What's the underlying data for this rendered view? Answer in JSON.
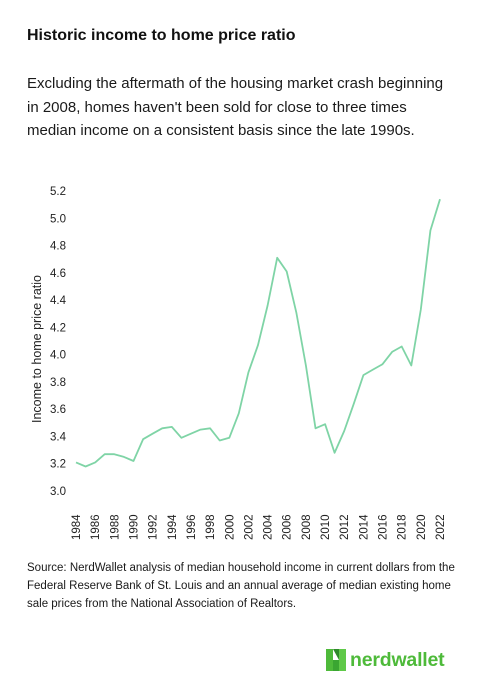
{
  "title": "Historic income to home price ratio",
  "subtitle": "Excluding the aftermath of the housing market crash beginning in 2008, homes haven't been sold for close to three times median income on a consistent basis since the late 1990s.",
  "source": "Source: NerdWallet analysis of median household income in current dollars from the Federal Reserve Bank of St. Louis and an annual average of median existing home sale prices from the National Association of Realtors.",
  "logo": {
    "text": "nerdwallet",
    "color": "#4eba3a"
  },
  "chart_data": {
    "type": "line",
    "title": "Historic income to home price ratio",
    "xlabel": "",
    "ylabel": "Income to home price ratio",
    "ylim": [
      3.0,
      5.2
    ],
    "yticks": [
      "3.0",
      "3.2",
      "3.4",
      "3.6",
      "3.8",
      "4.0",
      "4.2",
      "4.4",
      "4.6",
      "4.8",
      "5.0",
      "5.2"
    ],
    "xticks": [
      "1984",
      "1986",
      "1988",
      "1990",
      "1992",
      "1994",
      "1996",
      "1998",
      "2000",
      "2002",
      "2004",
      "2006",
      "2008",
      "2010",
      "2012",
      "2014",
      "2016",
      "2018",
      "2020",
      "2022"
    ],
    "grid": false,
    "line_color": "#7fd4a6",
    "series": [
      {
        "x": [
          1984,
          1985,
          1986,
          1987,
          1988,
          1989,
          1990,
          1991,
          1992,
          1993,
          1994,
          1995,
          1996,
          1997,
          1998,
          1999,
          2000,
          2001,
          2002,
          2003,
          2004,
          2005,
          2006,
          2007,
          2008,
          2009,
          2010,
          2011,
          2012,
          2013,
          2014,
          2015,
          2016,
          2017,
          2018,
          2019,
          2020,
          2021,
          2022
        ],
        "values": [
          3.21,
          3.18,
          3.21,
          3.27,
          3.27,
          3.25,
          3.22,
          3.38,
          3.42,
          3.46,
          3.47,
          3.39,
          3.42,
          3.45,
          3.46,
          3.37,
          3.39,
          3.57,
          3.87,
          4.07,
          4.36,
          4.71,
          4.61,
          4.31,
          3.92,
          3.46,
          3.49,
          3.28,
          3.44,
          3.64,
          3.85,
          3.89,
          3.93,
          4.02,
          4.06,
          3.92,
          4.33,
          4.91,
          5.14
        ]
      }
    ]
  }
}
